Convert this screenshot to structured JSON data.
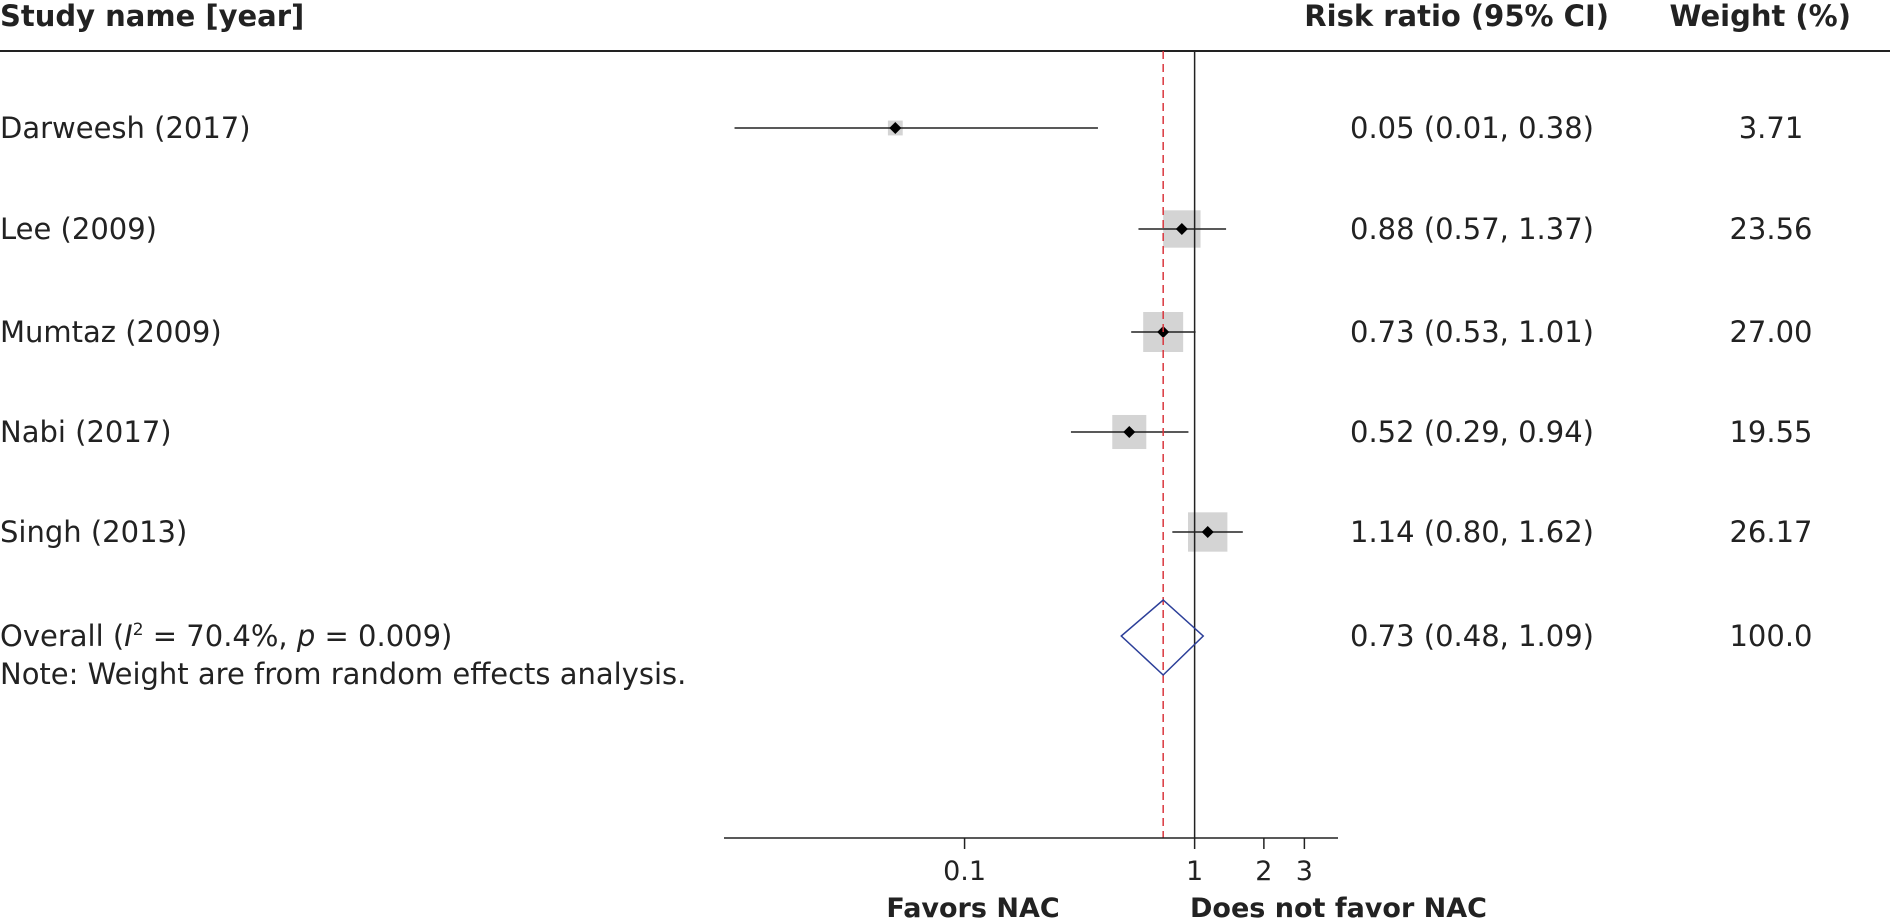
{
  "chart_data": {
    "type": "forest",
    "header": {
      "study_col": "Study name [year]",
      "effect_col": "Risk ratio (95% CI)",
      "weight_col": "Weight (%)"
    },
    "studies": [
      {
        "name": "Darweesh (2017)",
        "rr": 0.05,
        "lo": 0.01,
        "hi": 0.38,
        "ci_text": "0.05 (0.01, 0.38)",
        "weight": 3.71,
        "weight_text": "3.71"
      },
      {
        "name": "Lee (2009)",
        "rr": 0.88,
        "lo": 0.57,
        "hi": 1.37,
        "ci_text": "0.88 (0.57, 1.37)",
        "weight": 23.56,
        "weight_text": "23.56"
      },
      {
        "name": "Mumtaz (2009)",
        "rr": 0.73,
        "lo": 0.53,
        "hi": 1.01,
        "ci_text": "0.73 (0.53, 1.01)",
        "weight": 27.0,
        "weight_text": "27.00"
      },
      {
        "name": "Nabi (2017)",
        "rr": 0.52,
        "lo": 0.29,
        "hi": 0.94,
        "ci_text": "0.52 (0.29, 0.94)",
        "weight": 19.55,
        "weight_text": "19.55"
      },
      {
        "name": "Singh (2013)",
        "rr": 1.14,
        "lo": 0.8,
        "hi": 1.62,
        "ci_text": "1.14 (0.80, 1.62)",
        "weight": 26.17,
        "weight_text": "26.17"
      }
    ],
    "overall": {
      "label_prefix": "Overall (",
      "i_symbol": "I",
      "i_sup": "2",
      "i_rest": " = 70.4%, ",
      "p_symbol": "p",
      "p_rest": " = 0.009)",
      "rr": 0.73,
      "lo": 0.48,
      "hi": 1.09,
      "ci_text": "0.73 (0.48, 1.09)",
      "weight_text": "100.0"
    },
    "note": "Note: Weight are from random effects analysis.",
    "x_axis": {
      "scale": "log",
      "range": [
        0.009,
        4.2
      ],
      "ticks": [
        {
          "value": 0.1,
          "label": "0.1"
        },
        {
          "value": 1,
          "label": "1"
        },
        {
          "value": 2,
          "label": "2"
        },
        {
          "value": 3,
          "label": "3"
        }
      ],
      "null_line": 1,
      "pooled_line": 0.73
    },
    "favors_left": "Favors NAC",
    "favors_right": "Does not favor NAC",
    "colors": {
      "text": "#222222",
      "weight_box": "#d4d4d4",
      "diamond": "#2c3f99",
      "pooled_line": "#d9363e",
      "lines": "#222222"
    }
  }
}
